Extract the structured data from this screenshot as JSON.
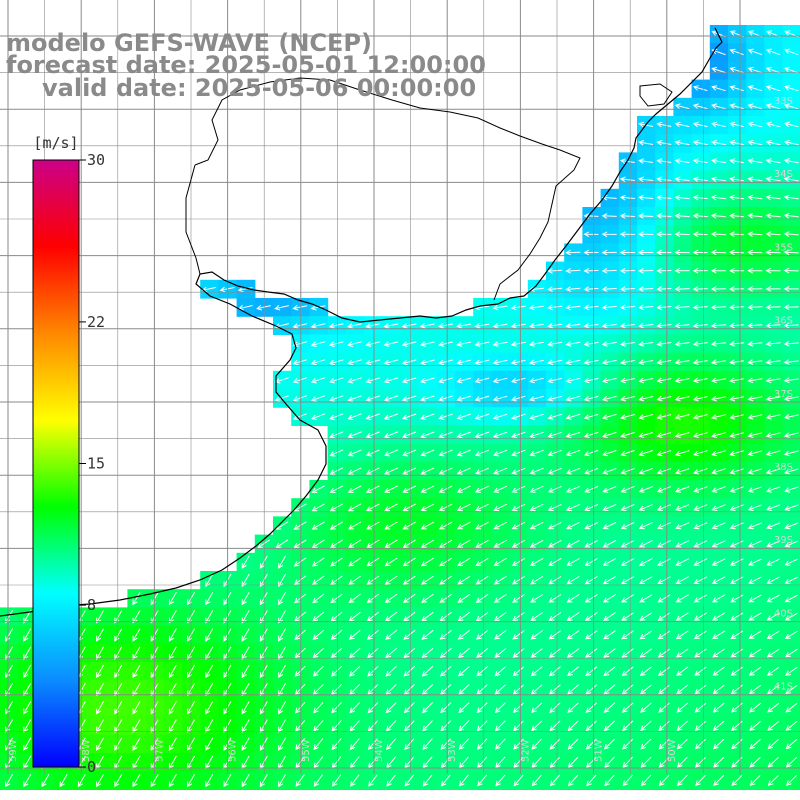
{
  "title": {
    "line1": "modelo GEFS-WAVE (NCEP)",
    "line2": "forecast date: 2025-05-01 12:00:00",
    "line3": "valid date: 2025-05-06 00:00:00"
  },
  "colorbar": {
    "unit": "[m/s]",
    "ticks": [
      {
        "value": 30,
        "label": "30"
      },
      {
        "value": 22,
        "label": "22"
      },
      {
        "value": 15,
        "label": "15"
      },
      {
        "value": 8,
        "label": "8"
      },
      {
        "value": 0,
        "label": "0"
      }
    ],
    "colors": [
      "#0000ff",
      "#0a8cff",
      "#00ffff",
      "#00ff00",
      "#ffff00",
      "#ff8800",
      "#ff0000",
      "#cc0088"
    ],
    "range": [
      0,
      30
    ]
  },
  "latitude_labels": [
    "33S",
    "34S",
    "35S",
    "36S",
    "37S",
    "38S",
    "39S",
    "40S",
    "41S"
  ],
  "longitude_labels": [
    "59W",
    "58W",
    "57W",
    "56W",
    "55W",
    "54W",
    "53W",
    "52W",
    "51W",
    "50W"
  ],
  "wind_field": {
    "direction": "toward southwest / west",
    "coast_color": "#000000",
    "grid_color": "#8a8a8a"
  }
}
